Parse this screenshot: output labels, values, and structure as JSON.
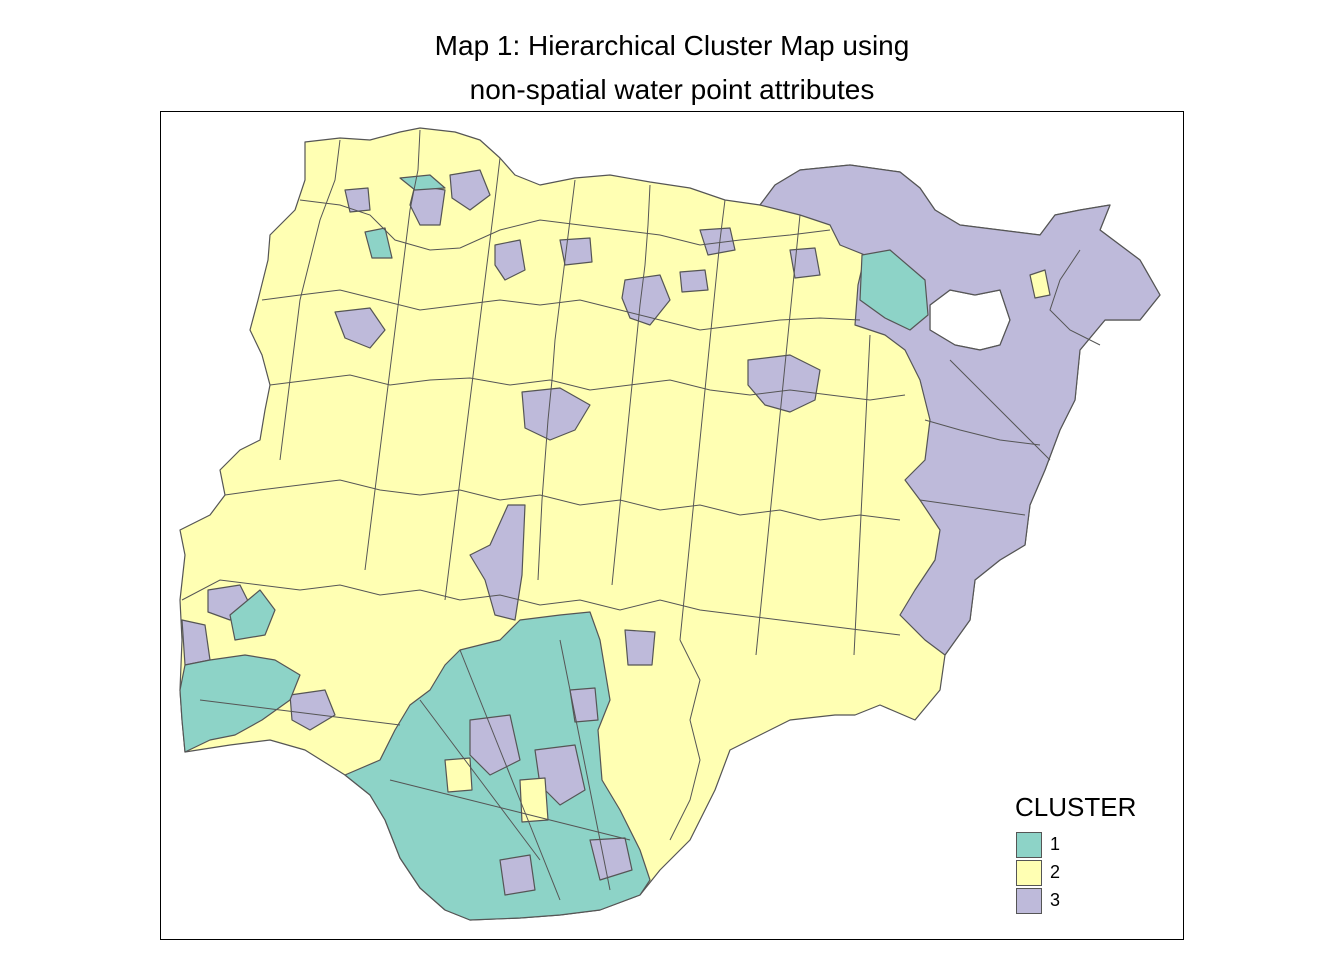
{
  "title": {
    "line1": "Map 1: Hierarchical Cluster Map using",
    "line2": "non-spatial water point attributes"
  },
  "legend": {
    "title": "CLUSTER",
    "items": [
      {
        "label": "1",
        "color": "#8dd3c7"
      },
      {
        "label": "2",
        "color": "#ffffb3"
      },
      {
        "label": "3",
        "color": "#bebada"
      }
    ]
  },
  "colors": {
    "border": "#555555",
    "background": "#ffffff",
    "no_data": "#ffffff"
  }
}
